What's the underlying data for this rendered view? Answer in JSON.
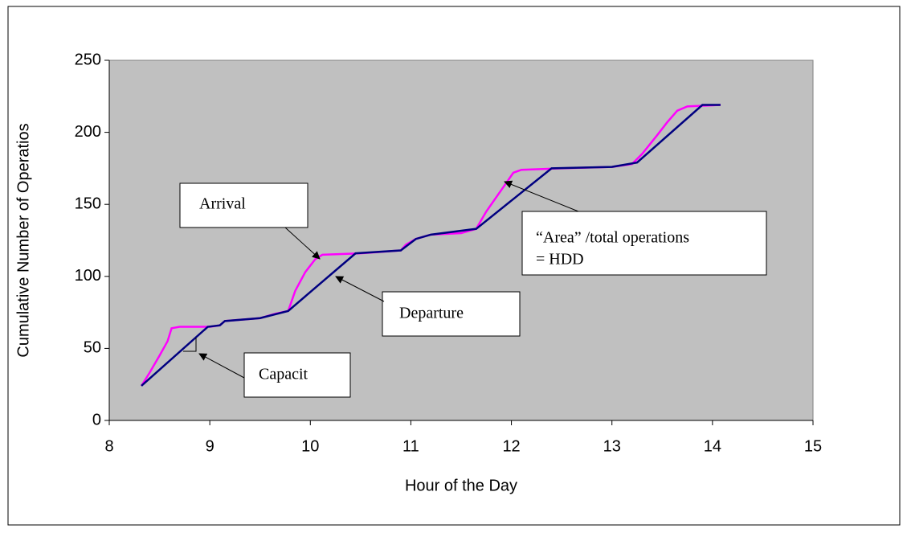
{
  "chart_data": {
    "type": "line",
    "xlabel": "Hour of the Day",
    "ylabel": "Cumulative Number of Operatios",
    "xlim": [
      8,
      15
    ],
    "xticks": [
      8,
      9,
      10,
      11,
      12,
      13,
      14,
      15
    ],
    "ylim": [
      0,
      250
    ],
    "yticks": [
      0,
      50,
      100,
      150,
      200,
      250
    ],
    "series": [
      {
        "name": "Arrival",
        "color": "#ff00ff",
        "x": [
          8.32,
          8.4,
          8.5,
          8.58,
          8.62,
          8.7,
          9.0,
          9.1,
          9.15,
          9.5,
          9.65,
          9.78,
          9.85,
          9.95,
          10.05,
          10.12,
          10.5,
          10.9,
          10.95,
          11.05,
          11.2,
          11.5,
          11.65,
          11.75,
          11.9,
          12.02,
          12.1,
          12.5,
          13.0,
          13.2,
          13.3,
          13.45,
          13.55,
          13.65,
          13.75,
          14.08
        ],
        "values": [
          24,
          33,
          45,
          55,
          64,
          65,
          65,
          66,
          69,
          71,
          74,
          76,
          90,
          103,
          112,
          115,
          116,
          118,
          122,
          126,
          129,
          130,
          133,
          145,
          160,
          172,
          174,
          175,
          176,
          178,
          185,
          198,
          207,
          215,
          218,
          219
        ]
      },
      {
        "name": "Departure",
        "color": "#000080",
        "x": [
          8.32,
          8.98,
          9.1,
          9.15,
          9.5,
          9.78,
          10.45,
          10.9,
          11.05,
          11.2,
          11.65,
          12.4,
          13.0,
          13.25,
          13.9,
          14.08
        ],
        "values": [
          24,
          65,
          66,
          69,
          71,
          76,
          116,
          118,
          126,
          129,
          133,
          175,
          176,
          179,
          219,
          219
        ]
      }
    ],
    "annotations": [
      "Arrival",
      "Departure",
      "Capacit",
      "“Area” /total operations",
      "= HDD"
    ]
  }
}
